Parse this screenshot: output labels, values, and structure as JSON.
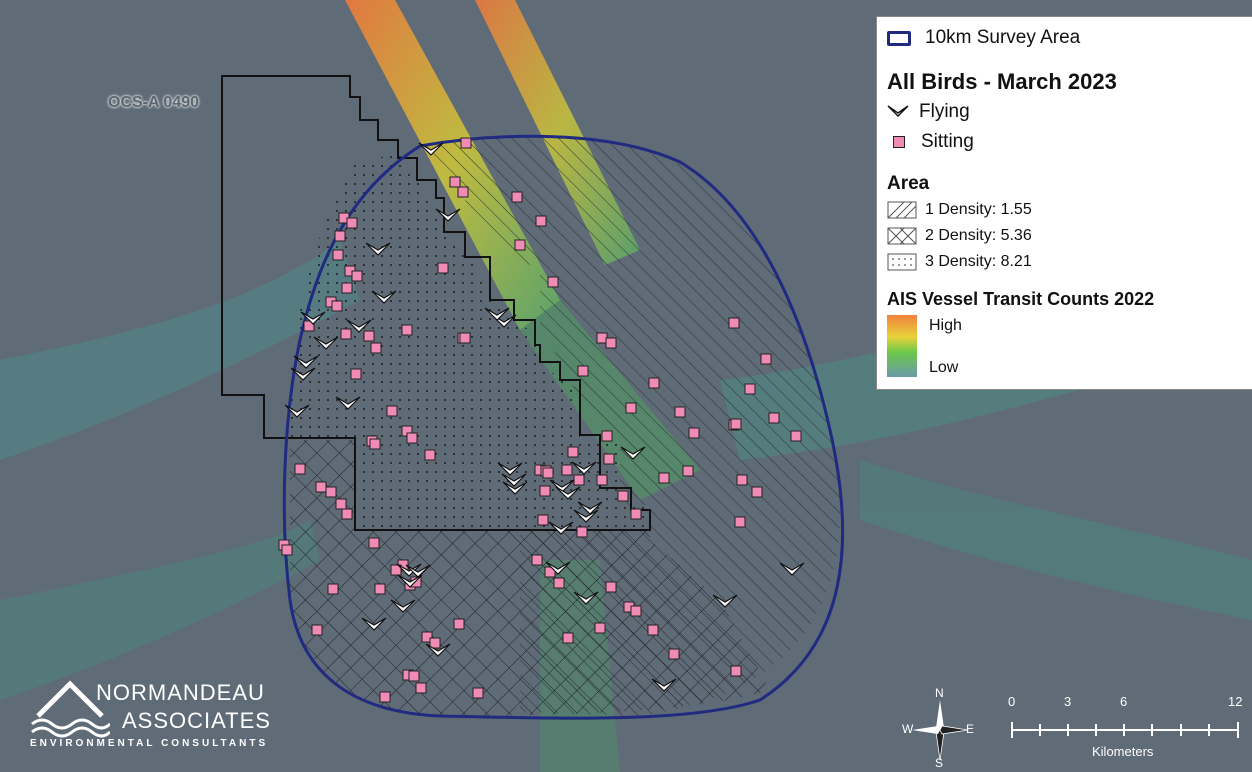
{
  "map": {
    "lease_label": "OCS-A 0490",
    "colors": {
      "ocean": "#5f6b77",
      "survey_boundary": "#1f2a80",
      "lease_boundary": "#111111",
      "sitting_bird": "#f08bb5",
      "vessel_high": "#f0803c",
      "vessel_mid": "#9cc83a",
      "vessel_low": "#6a9aa8"
    }
  },
  "legend": {
    "survey_area": "10km Survey Area",
    "birds_title": "All Birds - March 2023",
    "flying": "Flying",
    "sitting": "Sitting",
    "area_title": "Area",
    "area_items": [
      {
        "label": "1 Density: 1.55",
        "pattern": "diagonal-hatch"
      },
      {
        "label": "2 Density: 5.36",
        "pattern": "cross-hatch"
      },
      {
        "label": "3 Density: 8.21",
        "pattern": "dots"
      }
    ],
    "ais_title": "AIS Vessel Transit Counts 2022",
    "ais_high": "High",
    "ais_low": "Low"
  },
  "logo": {
    "line1": "NORMANDEAU",
    "line2": "ASSOCIATES",
    "line3": "ENVIRONMENTAL CONSULTANTS"
  },
  "north_arrow": {
    "n": "N",
    "s": "S",
    "e": "E",
    "w": "W"
  },
  "scale_bar": {
    "ticks": [
      "0",
      "3",
      "6",
      "12"
    ],
    "unit": "Kilometers"
  }
}
